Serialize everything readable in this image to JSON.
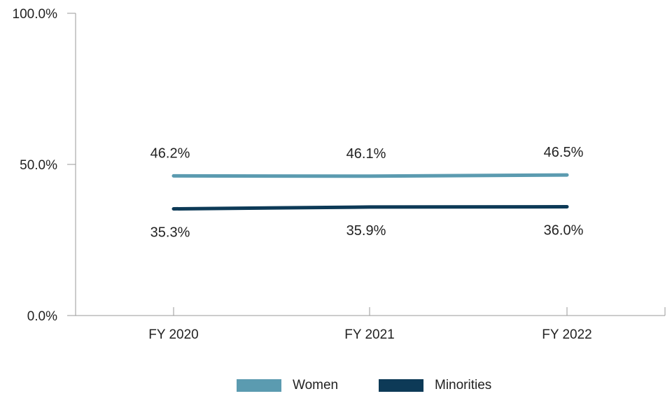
{
  "chart_data": {
    "type": "line",
    "categories": [
      "FY 2020",
      "FY 2021",
      "FY 2022"
    ],
    "y_tick_labels": [
      "0.0%",
      "50.0%",
      "100.0%"
    ],
    "ylim": [
      0,
      100
    ],
    "grid": false,
    "legend_position": "bottom-center",
    "series": [
      {
        "name": "Women",
        "values": [
          46.2,
          46.1,
          46.5
        ],
        "labels": [
          "46.2%",
          "46.1%",
          "46.5%"
        ],
        "color": "#5b9bb0"
      },
      {
        "name": "Minorities",
        "values": [
          35.3,
          35.9,
          36.0
        ],
        "labels": [
          "35.3%",
          "35.9%",
          "36.0%"
        ],
        "color": "#0d3a57"
      }
    ]
  },
  "legend": {
    "items": [
      {
        "label": "Women",
        "color": "#5b9bb0"
      },
      {
        "label": "Minorities",
        "color": "#0d3a57"
      }
    ]
  }
}
